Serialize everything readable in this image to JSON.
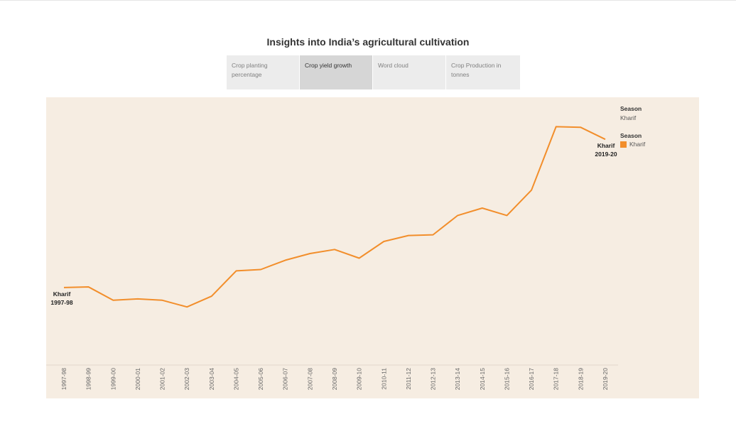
{
  "page": {
    "title": "Insights into India’s agricultural cultivation"
  },
  "tabs": [
    {
      "label": "Crop planting percentage",
      "active": false
    },
    {
      "label": "Crop yield growth",
      "active": true
    },
    {
      "label": "Word cloud",
      "active": false
    },
    {
      "label": "Crop Production in tonnes",
      "active": false
    }
  ],
  "filter": {
    "title": "Season",
    "value": "Kharif"
  },
  "legend": {
    "title": "Season",
    "items": [
      {
        "label": "Kharif",
        "color": "#f28e2b"
      }
    ]
  },
  "chart_data": {
    "type": "line",
    "x": [
      "1997-98",
      "1998-99",
      "1999-00",
      "2000-01",
      "2001-02",
      "2002-03",
      "2003-04",
      "2004-05",
      "2005-06",
      "2006-07",
      "2007-08",
      "2008-09",
      "2009-10",
      "2010-11",
      "2011-12",
      "2012-13",
      "2013-14",
      "2014-15",
      "2015-16",
      "2016-17",
      "2017-18",
      "2018-19",
      "2019-20"
    ],
    "series": [
      {
        "name": "Kharif",
        "color": "#f28e2b",
        "values": [
          1.15,
          1.16,
          0.96,
          0.98,
          0.96,
          0.86,
          1.02,
          1.4,
          1.42,
          1.56,
          1.66,
          1.72,
          1.59,
          1.84,
          1.93,
          1.94,
          2.23,
          2.34,
          2.23,
          2.61,
          3.56,
          3.55,
          3.37
        ]
      }
    ],
    "ylim": [
      0,
      4.0
    ],
    "grid": false,
    "y_axis_visible": false,
    "annotations": [
      {
        "series": "Kharif",
        "index": 0,
        "label": "Kharif",
        "sublabel": "1997-98"
      },
      {
        "series": "Kharif",
        "index": 22,
        "label": "Kharif",
        "sublabel": "2019-20"
      }
    ],
    "legend_position": "right"
  }
}
